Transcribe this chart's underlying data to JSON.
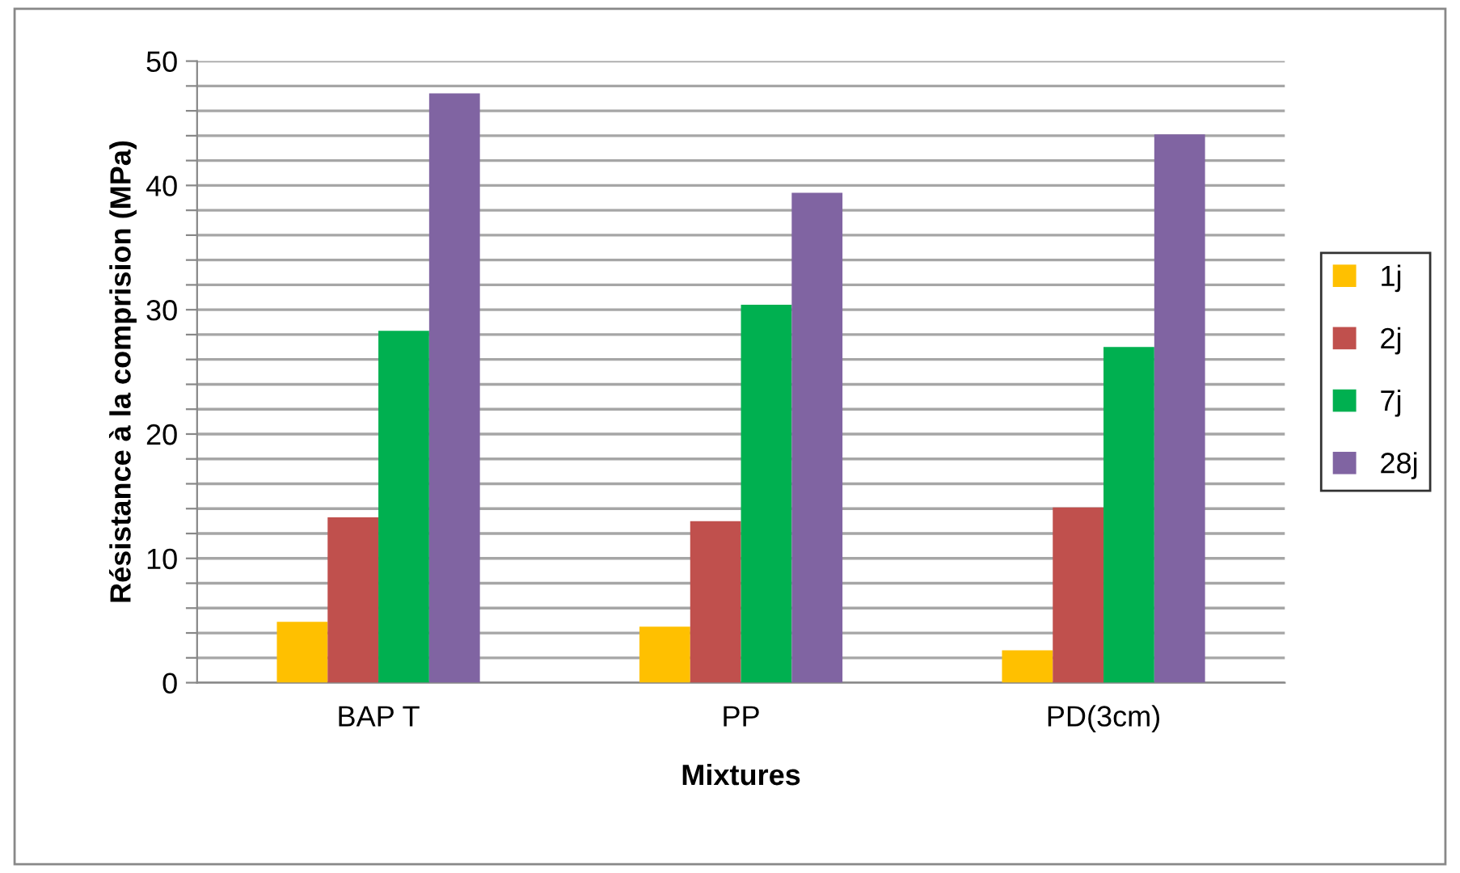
{
  "chart_data": {
    "type": "bar",
    "xlabel": "Mixtures",
    "ylabel": "Résistance à la comprision (MPa)",
    "categories": [
      "BAP T",
      "PP",
      "PD(3cm)"
    ],
    "series": [
      {
        "name": "1j",
        "color": "#ffc000",
        "values": [
          4.9,
          4.5,
          2.6
        ]
      },
      {
        "name": "2j",
        "color": "#c0504d",
        "values": [
          13.3,
          13.0,
          14.1
        ]
      },
      {
        "name": "7j",
        "color": "#00b050",
        "values": [
          28.3,
          30.4,
          27.0
        ]
      },
      {
        "name": "28j",
        "color": "#8064a2",
        "values": [
          47.4,
          39.4,
          44.1
        ]
      }
    ],
    "ylim": [
      0,
      50
    ],
    "yticks": [
      0,
      {
        "value": 2,
        "label": null
      },
      {
        "value": 4,
        "label": null
      },
      {
        "value": 6,
        "label": null
      },
      {
        "value": 8,
        "label": null
      },
      10,
      {
        "value": 12,
        "label": null
      },
      {
        "value": 14,
        "label": null
      },
      {
        "value": 16,
        "label": null
      },
      {
        "value": 18,
        "label": null
      },
      20,
      {
        "value": 22,
        "label": null
      },
      {
        "value": 24,
        "label": null
      },
      {
        "value": 26,
        "label": null
      },
      {
        "value": 28,
        "label": null
      },
      30,
      {
        "value": 32,
        "label": null
      },
      {
        "value": 34,
        "label": null
      },
      {
        "value": 36,
        "label": null
      },
      {
        "value": 38,
        "label": null
      },
      40,
      {
        "value": 42,
        "label": null
      },
      {
        "value": 44,
        "label": null
      },
      {
        "value": 46,
        "label": null
      },
      {
        "value": 48,
        "label": null
      },
      50
    ],
    "grid": "y",
    "legend": "right"
  }
}
